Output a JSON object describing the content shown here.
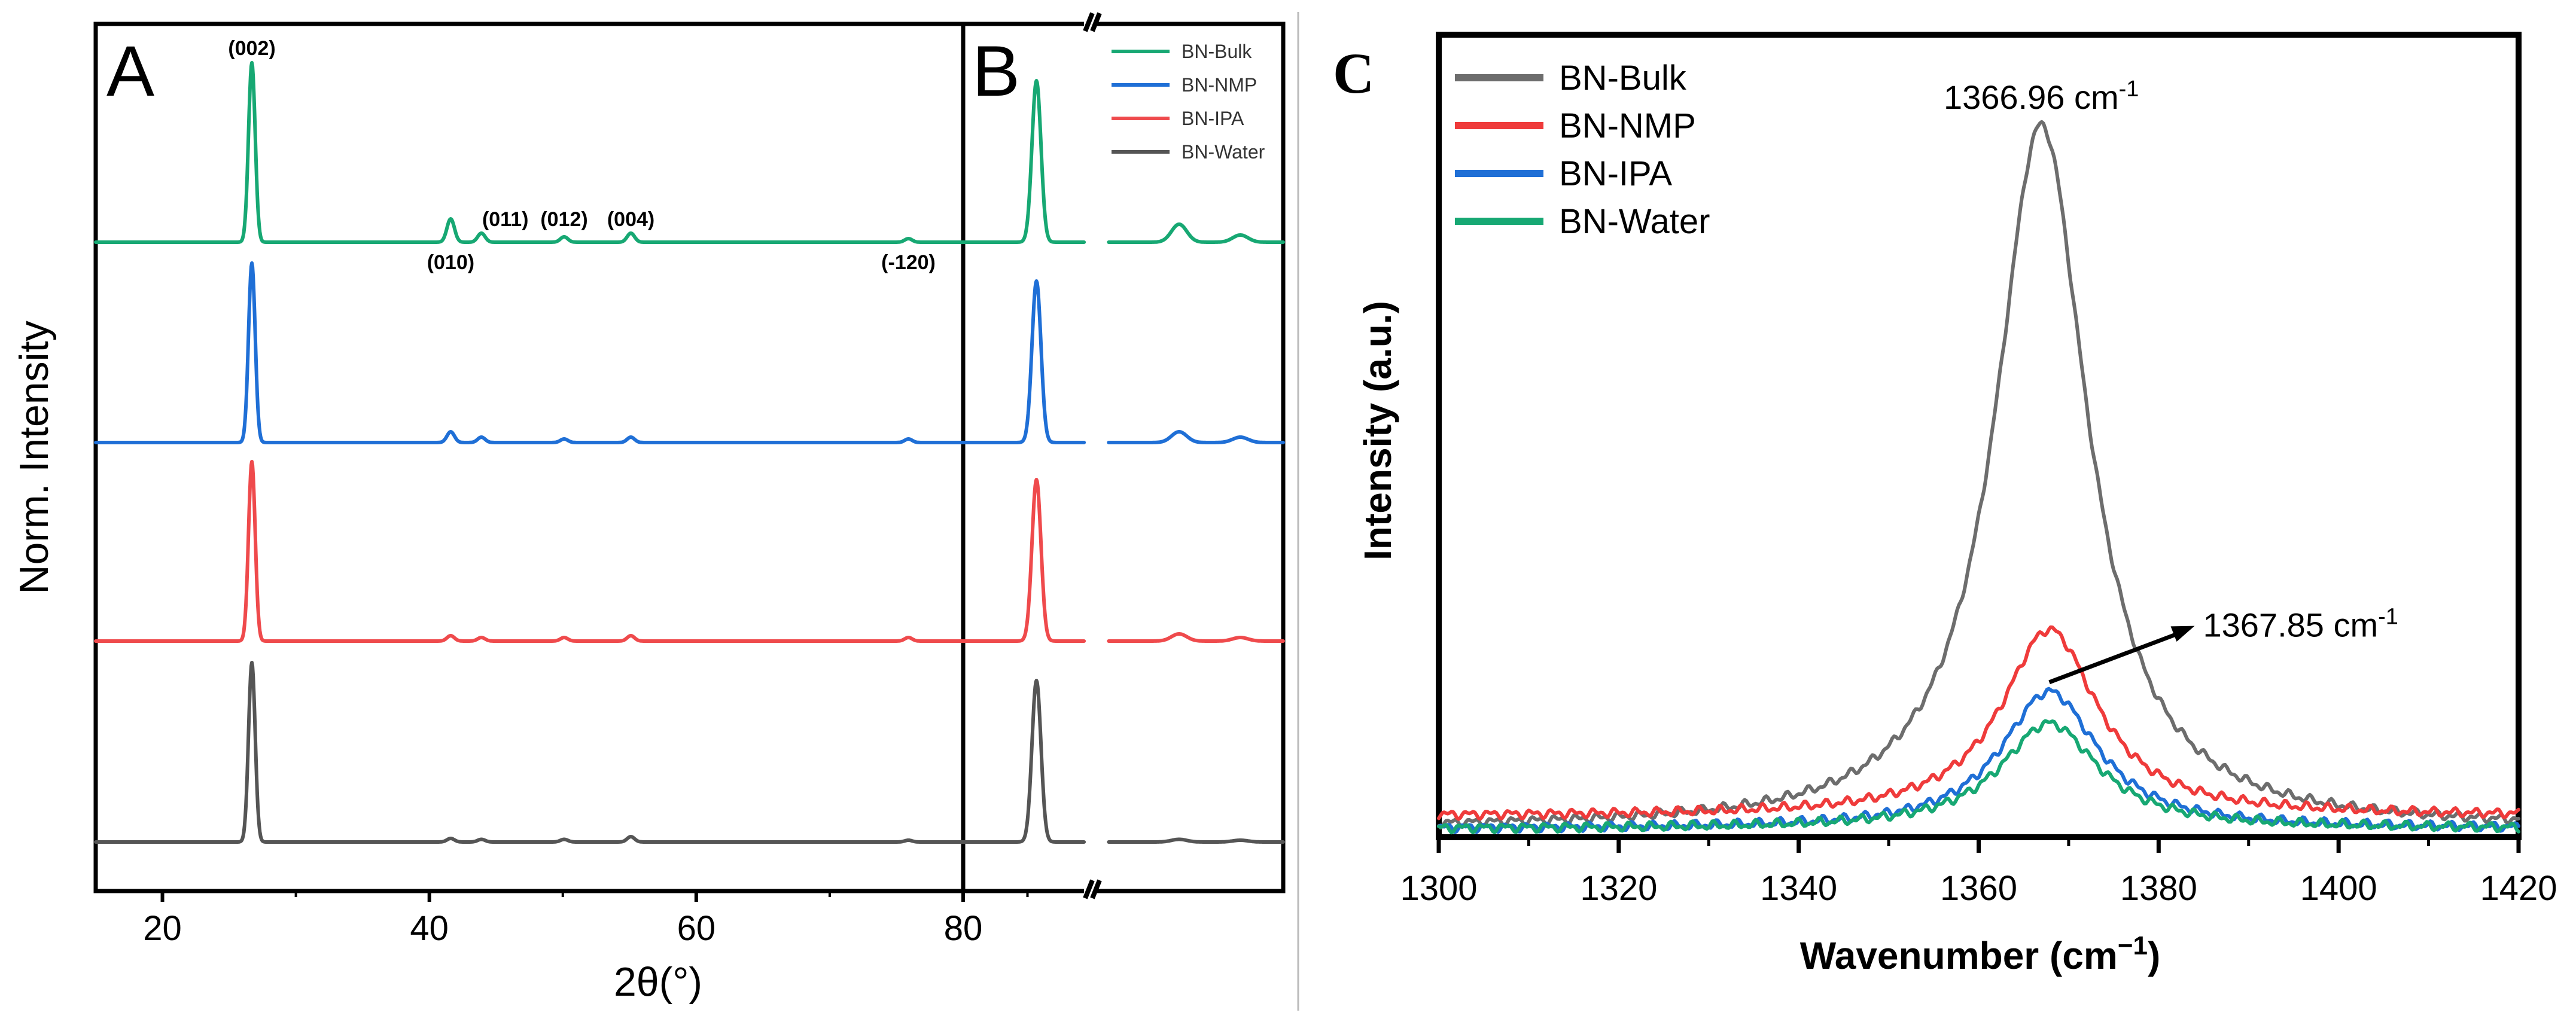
{
  "chart_data": [
    {
      "id": "A",
      "type": "line",
      "panel_label": "A",
      "xlabel": "2θ(°)",
      "ylabel": "Norm. Intensity",
      "xlim": [
        15,
        80
      ],
      "xticks": [
        20,
        40,
        60,
        80
      ],
      "colors": {
        "BN-Bulk": "#17a873",
        "BN-NMP": "#1f6fd6",
        "BN-IPA": "#ef4a4c",
        "BN-Water": "#555555"
      },
      "series_order_top_to_bottom": [
        "BN-Bulk",
        "BN-NMP",
        "BN-IPA",
        "BN-Water"
      ],
      "series": [
        {
          "name": "BN-Bulk",
          "peaks": [
            [
              26.7,
              1.0
            ],
            [
              41.6,
              0.13
            ],
            [
              43.9,
              0.05
            ],
            [
              50.1,
              0.03
            ],
            [
              55.1,
              0.05
            ],
            [
              75.9,
              0.02
            ]
          ]
        },
        {
          "name": "BN-NMP",
          "peaks": [
            [
              26.7,
              1.0
            ],
            [
              41.6,
              0.06
            ],
            [
              43.9,
              0.03
            ],
            [
              50.1,
              0.02
            ],
            [
              55.1,
              0.03
            ],
            [
              75.9,
              0.02
            ]
          ]
        },
        {
          "name": "BN-IPA",
          "peaks": [
            [
              26.7,
              1.0
            ],
            [
              41.6,
              0.03
            ],
            [
              43.9,
              0.02
            ],
            [
              50.1,
              0.02
            ],
            [
              55.1,
              0.03
            ],
            [
              75.9,
              0.02
            ]
          ]
        },
        {
          "name": "BN-Water",
          "peaks": [
            [
              26.7,
              1.0
            ],
            [
              41.6,
              0.02
            ],
            [
              43.9,
              0.015
            ],
            [
              50.1,
              0.015
            ],
            [
              55.1,
              0.03
            ],
            [
              75.9,
              0.01
            ]
          ]
        }
      ],
      "annotations": [
        {
          "text": "(002)",
          "x": 26.7
        },
        {
          "text": "(010)",
          "x": 41.6
        },
        {
          "text": "(011)",
          "x": 43.9
        },
        {
          "text": "(012)",
          "x": 50.1
        },
        {
          "text": "(004)",
          "x": 55.1
        },
        {
          "text": "(-120)",
          "x": 75.9
        }
      ]
    },
    {
      "id": "B",
      "type": "line",
      "panel_label": "B",
      "note": "expanded view with broken x-axis (break after ~90)",
      "xticks": [
        80
      ],
      "legend": [
        "BN-Bulk",
        "BN-NMP",
        "BN-IPA",
        "BN-Water"
      ],
      "series": [
        {
          "name": "BN-Bulk",
          "peaks": [
            [
              85.7,
              0.9
            ],
            [
              95.2,
              0.1
            ],
            [
              99.2,
              0.04
            ]
          ]
        },
        {
          "name": "BN-NMP",
          "peaks": [
            [
              85.7,
              0.9
            ],
            [
              95.2,
              0.06
            ],
            [
              99.2,
              0.03
            ]
          ]
        },
        {
          "name": "BN-IPA",
          "peaks": [
            [
              85.7,
              0.9
            ],
            [
              95.2,
              0.04
            ],
            [
              99.2,
              0.02
            ]
          ]
        },
        {
          "name": "BN-Water",
          "peaks": [
            [
              85.7,
              0.9
            ],
            [
              95.2,
              0.015
            ],
            [
              99.2,
              0.01
            ]
          ]
        }
      ]
    },
    {
      "id": "C",
      "type": "line",
      "panel_label": "C",
      "xlabel": "Wavenumber (cm",
      "xlabel_sup": "−1",
      "xlabel_end": ")",
      "ylabel": "Intensity (a.u.)",
      "xlim": [
        1300,
        1420
      ],
      "ylim": [
        0,
        1.03
      ],
      "xticks": [
        1300,
        1320,
        1340,
        1360,
        1380,
        1400,
        1420
      ],
      "legend": [
        "BN-Bulk",
        "BN-NMP",
        "BN-IPA",
        "BN-Water"
      ],
      "colors": {
        "BN-Bulk": "#6d6d6d",
        "BN-NMP": "#ef3b3b",
        "BN-IPA": "#1f6fd6",
        "BN-Water": "#17a873"
      },
      "series": [
        {
          "name": "BN-Bulk",
          "center": 1366.96,
          "peak": 1.0,
          "hwhm": 6.2,
          "baseline": 0.012,
          "skew": 0.006
        },
        {
          "name": "BN-NMP",
          "center": 1367.85,
          "peak": 0.265,
          "hwhm": 6.5,
          "baseline": 0.03,
          "skew": 0
        },
        {
          "name": "BN-IPA",
          "center": 1367.85,
          "peak": 0.195,
          "hwhm": 6.5,
          "baseline": 0.012,
          "skew": 0
        },
        {
          "name": "BN-Water",
          "center": 1367.85,
          "peak": 0.15,
          "hwhm": 6.6,
          "baseline": 0.012,
          "skew": 0
        }
      ],
      "annotations": [
        {
          "text": "1366.96 cm",
          "sup": "-1",
          "x": 1366.96
        },
        {
          "text": "1367.85 cm",
          "sup": "-1",
          "arrow_from": [
            1367.85,
            0.22
          ],
          "arrow_to": [
            1384,
            0.3
          ]
        }
      ]
    }
  ]
}
